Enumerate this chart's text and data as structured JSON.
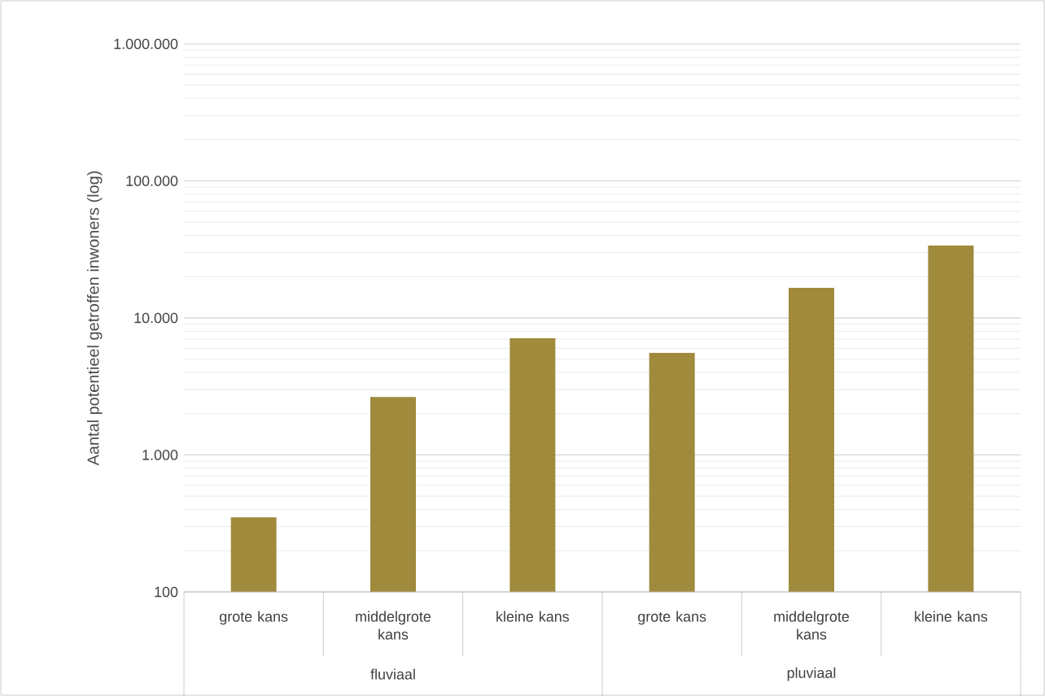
{
  "chart_data": {
    "type": "bar",
    "categories": [
      "grote kans",
      "middelgrote kans",
      "kleine kans",
      "grote kans",
      "middelgrote kans",
      "kleine kans"
    ],
    "values": [
      350,
      2650,
      7100,
      5550,
      16600,
      33800
    ],
    "color": "#a08a3c",
    "ylabel": "Aantal potentieel getroffen inwoners (log)",
    "log": "y",
    "ylim": [
      100,
      1000000
    ],
    "yticks": [
      100,
      {
        "value": 1000,
        "label": "1.000"
      },
      {
        "value": 10000,
        "label": "10.000"
      },
      {
        "value": 100000,
        "label": "100.000"
      },
      {
        "value": 1000000,
        "label": "1.000.000"
      }
    ],
    "grid": "y",
    "annotations": [
      "fluviaal",
      "pluviaal"
    ]
  }
}
